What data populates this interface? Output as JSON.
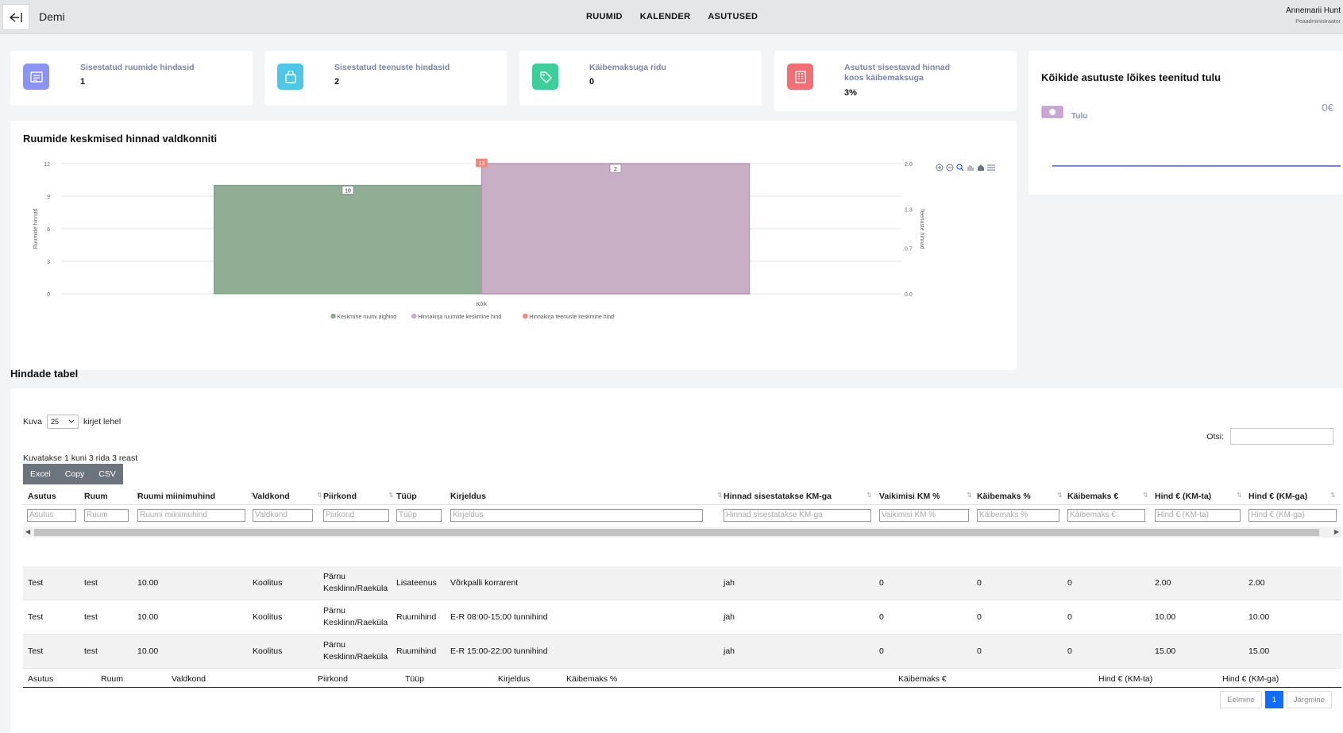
{
  "header": {
    "brand": "Demi",
    "nav": [
      "RUUMID",
      "KALENDER",
      "ASUTUSED"
    ],
    "user_name": "Annemarii Hunt",
    "user_role": "Peaadministraator"
  },
  "stats": [
    {
      "label": "Sisestatud ruumide hindasid",
      "value": "1",
      "icon": "list-icon",
      "color": "#8b93f5"
    },
    {
      "label": "Sisestatud teenuste hindasid",
      "value": "2",
      "icon": "bag-icon",
      "color": "#4cc7e8"
    },
    {
      "label": "Käibemaksuga ridu",
      "value": "0",
      "icon": "tag-icon",
      "color": "#3ccf9a"
    },
    {
      "label": "Asutust sisestavad hinnad koos käibemaksuga",
      "value": "3%",
      "icon": "building-icon",
      "color": "#f26f73"
    }
  ],
  "income": {
    "title": "Kõikide asutuste lõikes teenitud tulu",
    "label": "Tulu",
    "value": "0€"
  },
  "chart": {
    "title": "Ruumide keskmised hinnad valdkonniti"
  },
  "chart_data": {
    "type": "bar",
    "categories": [
      "Kõik"
    ],
    "series": [
      {
        "name": "Keskmine ruumi alghind",
        "values": [
          10
        ],
        "color": "#8fae94",
        "axis": "left"
      },
      {
        "name": "Hinnakirja ruumide keskmine hind",
        "values": [
          2
        ],
        "color": "#c9afc5",
        "axis": "right"
      },
      {
        "name": "Hinnakirja teenuste keskmine hind",
        "values": [
          13
        ],
        "color": "#f0887a",
        "axis": "left"
      }
    ],
    "ylabel": "Ruumide hinnad",
    "y2label": "Teenuste hinnad",
    "ylim": [
      0,
      12
    ],
    "y2lim": [
      0,
      2
    ],
    "yticks": [
      "0",
      "3",
      "6",
      "9",
      "12"
    ],
    "y2ticks": [
      "0.0",
      "0.7",
      "1.3",
      "2.0"
    ],
    "legend_position": "bottom",
    "grid": true
  },
  "table": {
    "heading": "Hindade tabel",
    "length_prefix": "Kuva",
    "length_value": "25",
    "length_suffix": "kirjet lehel",
    "search_label": "Otsi:",
    "info": "Kuvatakse 1 kuni 3 rida 3 reast",
    "buttons": [
      "Excel",
      "Copy",
      "CSV"
    ],
    "columns": [
      "Asutus",
      "Ruum",
      "Ruumi miinimuhind",
      "Valdkond",
      "Piirkond",
      "Tüüp",
      "Kirjeldus",
      "Hinnad sisestatakse KM-ga",
      "Vaikimisi KM %",
      "Käibemaks %",
      "Käibemaks €",
      "Hind € (KM-ta)",
      "Hind € (KM-ga)"
    ],
    "rows": [
      [
        "Test",
        "test",
        "10.00",
        "Koolitus",
        "Pärnu Kesklinn/Raeküla",
        "Lisateenus",
        "Võrkpalli korrarent",
        "jah",
        "0",
        "0",
        "0",
        "2.00",
        "2.00"
      ],
      [
        "Test",
        "test",
        "10.00",
        "Koolitus",
        "Pärnu Kesklinn/Raeküla",
        "Ruumihind",
        "E-R 08:00-15:00 tunnihind",
        "jah",
        "0",
        "0",
        "0",
        "10.00",
        "10.00"
      ],
      [
        "Test",
        "test",
        "10.00",
        "Koolitus",
        "Pärnu Kesklinn/Raeküla",
        "Ruumihind",
        "E-R 15:00-22:00 tunnihind",
        "jah",
        "0",
        "0",
        "0",
        "15.00",
        "15.00"
      ]
    ],
    "footer": [
      "Asutus",
      "Ruum",
      "Valdkond",
      "Piirkond",
      "Tüüp",
      "Kirjeldus",
      "Käibemaks %",
      "Käibemaks €",
      "Hind € (KM-ta)",
      "Hind € (KM-ga)"
    ],
    "pager": {
      "prev": "Eelmine",
      "page": "1",
      "next": "Järgmine"
    }
  }
}
